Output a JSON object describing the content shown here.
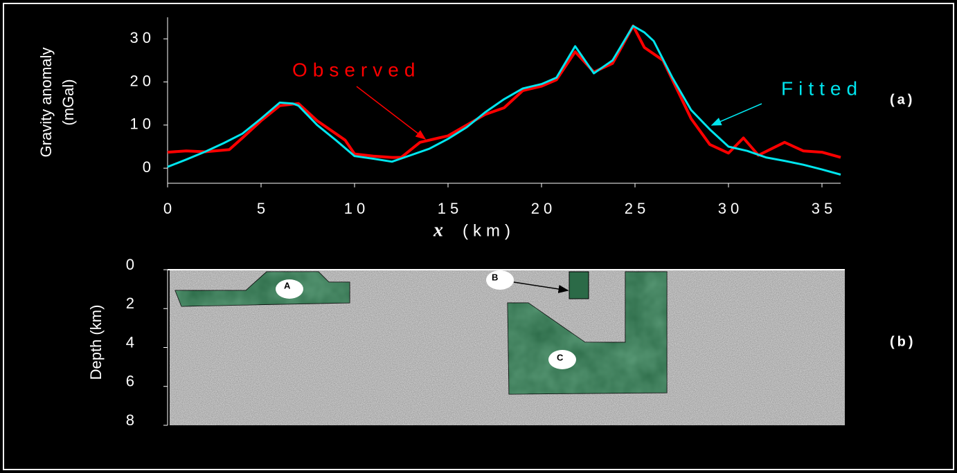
{
  "chart_data": [
    {
      "type": "line",
      "panel": "(a)",
      "ylabel": [
        "Gravity anomaly",
        "(mGal)"
      ],
      "xlabel": [
        "x",
        "(km)"
      ],
      "xlim": [
        0,
        36
      ],
      "xticks": [
        0,
        5,
        10,
        15,
        20,
        25,
        30,
        35
      ],
      "ylim": [
        -3.5,
        35
      ],
      "yticks": [
        0,
        10,
        20,
        30
      ],
      "series": [
        {
          "name": "Observed",
          "color": "#ff0000",
          "x": [
            0,
            1,
            2,
            3.3,
            4,
            5,
            6,
            7,
            8,
            9,
            9.5,
            10,
            11,
            12,
            12.5,
            13.5,
            14.5,
            15,
            16,
            17,
            18,
            19,
            20,
            20.8,
            21.8,
            22.8,
            23.8,
            24.9,
            25.5,
            26.5,
            27.5,
            28,
            29,
            30,
            30.8,
            31.6,
            33,
            34,
            35,
            36
          ],
          "values": [
            3.7,
            4,
            3.8,
            4.3,
            7,
            11,
            14.5,
            15,
            11,
            8,
            6.5,
            3.3,
            2.8,
            2.5,
            2.5,
            6,
            7,
            7.5,
            10,
            12.5,
            14,
            18,
            19,
            20.5,
            27,
            22.3,
            24.3,
            33,
            28,
            25,
            16,
            11.5,
            5.5,
            3.5,
            7,
            3,
            6,
            4,
            3.7,
            2.5
          ]
        },
        {
          "name": "Fitted",
          "color": "#00e5ee",
          "x": [
            0,
            1,
            2,
            3,
            4,
            5,
            6,
            6.7,
            7,
            8,
            9,
            10,
            11,
            12,
            13,
            14,
            15,
            16,
            17,
            18,
            19,
            20,
            20.8,
            21.8,
            22.8,
            23.8,
            24.9,
            25.5,
            26,
            27,
            28,
            29,
            30,
            31,
            32,
            33,
            34,
            35,
            36
          ],
          "values": [
            0.3,
            2,
            3.8,
            5.8,
            8,
            11.5,
            15.2,
            15,
            14.5,
            10,
            6.5,
            2.8,
            2.2,
            1.5,
            3,
            4.5,
            6.8,
            9.5,
            13,
            16,
            18.5,
            19.5,
            21,
            28.3,
            22,
            25,
            33,
            31.5,
            29.5,
            21,
            13.5,
            9,
            5,
            4,
            2.5,
            1.7,
            0.8,
            -0.3,
            -1.5
          ]
        }
      ]
    },
    {
      "type": "section",
      "panel": "(b)",
      "ylabel": "Depth (km)",
      "ylim": [
        0,
        8
      ],
      "yticks": [
        0,
        2,
        4,
        6,
        8
      ],
      "bodies": [
        "A",
        "B",
        "C"
      ]
    }
  ]
}
